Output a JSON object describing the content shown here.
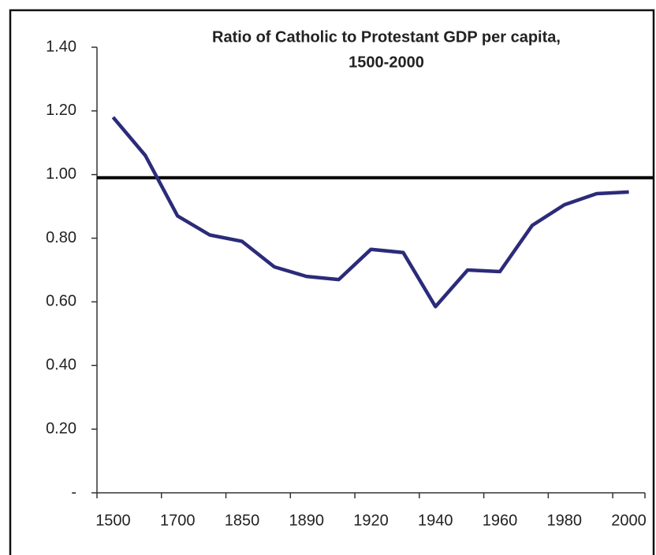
{
  "chart_data": {
    "type": "line",
    "title": [
      "Ratio of Catholic to Protestant GDP per capita,",
      "1500-2000"
    ],
    "categories": [
      "1500",
      null,
      "1700",
      null,
      "1850",
      null,
      "1890",
      null,
      "1920",
      null,
      "1940",
      null,
      "1960",
      null,
      "1980",
      null,
      "2000"
    ],
    "series": [
      {
        "name": "Ratio",
        "color": "#2b2b7a",
        "values": [
          1.18,
          1.06,
          0.87,
          0.81,
          0.79,
          0.71,
          0.68,
          0.67,
          0.765,
          0.755,
          0.585,
          0.7,
          0.695,
          0.84,
          0.905,
          0.94,
          0.945
        ]
      }
    ],
    "reference_line": 0.99,
    "ylim": [
      0,
      1.4
    ],
    "yticks": [
      {
        "value": 0,
        "label": "-"
      },
      {
        "value": 0.2,
        "label": "0.20"
      },
      {
        "value": 0.4,
        "label": "0.40"
      },
      {
        "value": 0.6,
        "label": "0.60"
      },
      {
        "value": 0.8,
        "label": "0.80"
      },
      {
        "value": 1.0,
        "label": "1.00"
      },
      {
        "value": 1.2,
        "label": "1.20"
      },
      {
        "value": 1.4,
        "label": "1.40"
      }
    ],
    "grid": false
  }
}
